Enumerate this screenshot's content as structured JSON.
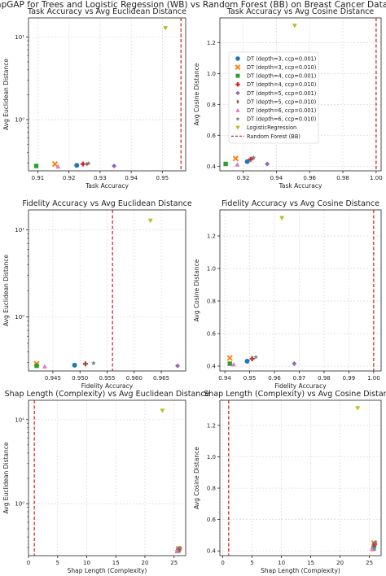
{
  "figure_title": "ShapGAP for Trees and Logistic Regession (WB) vs Random Forest (BB) on Breast Cancer Dataset",
  "legend": [
    {
      "label": "DT (depth=3, ccp=0.001)",
      "color": "#1f77b4",
      "marker": "circle"
    },
    {
      "label": "DT (depth=3, ccp=0.010)",
      "color": "#ff7f0e",
      "marker": "x"
    },
    {
      "label": "DT (depth=4, ccp=0.001)",
      "color": "#2ca02c",
      "marker": "square"
    },
    {
      "label": "DT (depth=4, ccp=0.010)",
      "color": "#d62728",
      "marker": "plus"
    },
    {
      "label": "DT (depth=5, ccp=0.001)",
      "color": "#9467bd",
      "marker": "diamond"
    },
    {
      "label": "DT (depth=5, ccp=0.010)",
      "color": "#8c564b",
      "marker": "thin-diamond"
    },
    {
      "label": "DT (depth=6, ccp=0.001)",
      "color": "#e377c2",
      "marker": "triangle-up"
    },
    {
      "label": "DT (depth=6, ccp=0.010)",
      "color": "#7f7f7f",
      "marker": "star"
    },
    {
      "label": "LogisticRegression",
      "color": "#bcbd22",
      "marker": "triangle-down"
    },
    {
      "label": "Random Forest (BB)",
      "color": "#d62728",
      "marker": "dashed-line"
    }
  ],
  "chart_data": [
    {
      "type": "scatter",
      "title": "Task Accuracy vs Avg Euclidean Distance",
      "xlabel": "Task Accuracy",
      "ylabel": "Avg Euclidean Distance",
      "xscale": "linear",
      "yscale": "log",
      "xlim": [
        0.907,
        0.9575
      ],
      "ylim": [
        0.24,
        17
      ],
      "xticks": [
        0.91,
        0.92,
        0.93,
        0.94,
        0.95
      ],
      "xtick_labels": [
        "0.91",
        "0.92",
        "0.93",
        "0.94",
        "0.95"
      ],
      "yticks": [
        1,
        10
      ],
      "ytick_labels": [
        "10⁰",
        "10¹"
      ],
      "grid": true,
      "reference_line": {
        "axis": "x",
        "value": 0.956,
        "label": "Random Forest (BB)"
      },
      "points": [
        {
          "series": 0,
          "x": 0.9225,
          "y": 0.28
        },
        {
          "series": 1,
          "x": 0.9155,
          "y": 0.29
        },
        {
          "series": 2,
          "x": 0.9095,
          "y": 0.275
        },
        {
          "series": 3,
          "x": 0.9245,
          "y": 0.29
        },
        {
          "series": 4,
          "x": 0.9345,
          "y": 0.275
        },
        {
          "series": 5,
          "x": 0.9258,
          "y": 0.29
        },
        {
          "series": 6,
          "x": 0.9165,
          "y": 0.27
        },
        {
          "series": 7,
          "x": 0.9263,
          "y": 0.295
        },
        {
          "series": 8,
          "x": 0.951,
          "y": 12.8
        }
      ]
    },
    {
      "type": "scatter",
      "title": "Task Accuracy vs Avg Cosine Distance",
      "xlabel": "Task Accuracy",
      "ylabel": "Avg Cosine Distance",
      "xscale": "linear",
      "yscale": "linear",
      "xlim": [
        0.906,
        1.003
      ],
      "ylim": [
        0.37,
        1.36
      ],
      "xticks": [
        0.92,
        0.94,
        0.96,
        0.98,
        1.0
      ],
      "xtick_labels": [
        "0.92",
        "0.94",
        "0.96",
        "0.98",
        "1.00"
      ],
      "yticks": [
        0.4,
        0.6,
        0.8,
        1.0,
        1.2
      ],
      "ytick_labels": [
        "0.4",
        "0.6",
        "0.8",
        "1.0",
        "1.2"
      ],
      "grid": true,
      "reference_line": {
        "axis": "x",
        "value": 1.0,
        "label": "Random Forest (BB)"
      },
      "legend_position": "center",
      "points": [
        {
          "series": 0,
          "x": 0.9225,
          "y": 0.43
        },
        {
          "series": 1,
          "x": 0.9155,
          "y": 0.45
        },
        {
          "series": 2,
          "x": 0.9095,
          "y": 0.415
        },
        {
          "series": 3,
          "x": 0.9245,
          "y": 0.445
        },
        {
          "series": 4,
          "x": 0.9345,
          "y": 0.415
        },
        {
          "series": 5,
          "x": 0.9258,
          "y": 0.45
        },
        {
          "series": 6,
          "x": 0.9165,
          "y": 0.41
        },
        {
          "series": 7,
          "x": 0.9263,
          "y": 0.455
        },
        {
          "series": 8,
          "x": 0.951,
          "y": 1.31
        }
      ]
    },
    {
      "type": "scatter",
      "title": "Fidelity Accuracy vs Avg Euclidean Distance",
      "xlabel": "Fidelity Accuracy",
      "ylabel": "Avg Euclidean Distance",
      "xscale": "linear",
      "yscale": "log",
      "xlim": [
        0.9405,
        0.9695
      ],
      "ylim": [
        0.24,
        17
      ],
      "xticks": [
        0.945,
        0.95,
        0.955,
        0.96,
        0.965
      ],
      "xtick_labels": [
        "0.945",
        "0.950",
        "0.955",
        "0.960",
        "0.965"
      ],
      "yticks": [
        1,
        10
      ],
      "ytick_labels": [
        "10⁰",
        "10¹"
      ],
      "grid": true,
      "reference_line": {
        "axis": "x",
        "value": 0.956,
        "label": "Random Forest (BB)"
      },
      "points": [
        {
          "series": 0,
          "x": 0.949,
          "y": 0.28
        },
        {
          "series": 1,
          "x": 0.942,
          "y": 0.29
        },
        {
          "series": 2,
          "x": 0.942,
          "y": 0.275
        },
        {
          "series": 3,
          "x": 0.951,
          "y": 0.29
        },
        {
          "series": 4,
          "x": 0.968,
          "y": 0.275
        },
        {
          "series": 5,
          "x": 0.951,
          "y": 0.29
        },
        {
          "series": 6,
          "x": 0.9435,
          "y": 0.27
        },
        {
          "series": 7,
          "x": 0.9525,
          "y": 0.295
        },
        {
          "series": 8,
          "x": 0.963,
          "y": 12.8
        }
      ]
    },
    {
      "type": "scatter",
      "title": "Fidelity Accuracy vs Avg Cosine Distance",
      "xlabel": "Fidelity Accuracy",
      "ylabel": "Avg Cosine Distance",
      "xscale": "linear",
      "yscale": "linear",
      "xlim": [
        0.938,
        1.003
      ],
      "ylim": [
        0.37,
        1.36
      ],
      "xticks": [
        0.94,
        0.95,
        0.96,
        0.97,
        0.98,
        0.99,
        1.0
      ],
      "xtick_labels": [
        "0.94",
        "0.95",
        "0.96",
        "0.97",
        "0.98",
        "0.99",
        "1.00"
      ],
      "yticks": [
        0.4,
        0.6,
        0.8,
        1.0,
        1.2
      ],
      "ytick_labels": [
        "0.4",
        "0.6",
        "0.8",
        "1.0",
        "1.2"
      ],
      "grid": true,
      "reference_line": {
        "axis": "x",
        "value": 1.0,
        "label": "Random Forest (BB)"
      },
      "points": [
        {
          "series": 0,
          "x": 0.949,
          "y": 0.43
        },
        {
          "series": 1,
          "x": 0.942,
          "y": 0.45
        },
        {
          "series": 2,
          "x": 0.942,
          "y": 0.415
        },
        {
          "series": 3,
          "x": 0.951,
          "y": 0.445
        },
        {
          "series": 4,
          "x": 0.968,
          "y": 0.415
        },
        {
          "series": 5,
          "x": 0.951,
          "y": 0.45
        },
        {
          "series": 6,
          "x": 0.9435,
          "y": 0.41
        },
        {
          "series": 7,
          "x": 0.9525,
          "y": 0.455
        },
        {
          "series": 8,
          "x": 0.963,
          "y": 1.31
        }
      ]
    },
    {
      "type": "scatter",
      "title": "Shap Length (Complexity) vs Avg Euclidean Distance",
      "xlabel": "Shap Length (Complexity)",
      "ylabel": "Avg Euclidean Distance",
      "xscale": "linear",
      "yscale": "log",
      "xlim": [
        0,
        27
      ],
      "ylim": [
        0.24,
        17
      ],
      "xticks": [
        0,
        5,
        10,
        15,
        20,
        25
      ],
      "xtick_labels": [
        "0",
        "5",
        "10",
        "15",
        "20",
        "25"
      ],
      "yticks": [
        1,
        10
      ],
      "ytick_labels": [
        "10⁰",
        "10¹"
      ],
      "grid": true,
      "reference_line": {
        "axis": "x",
        "value": 1,
        "label": "Random Forest (BB)"
      },
      "points": [
        {
          "series": 0,
          "x": 25.8,
          "y": 0.28
        },
        {
          "series": 1,
          "x": 25.8,
          "y": 0.29
        },
        {
          "series": 2,
          "x": 25.7,
          "y": 0.275
        },
        {
          "series": 3,
          "x": 25.9,
          "y": 0.29
        },
        {
          "series": 4,
          "x": 25.6,
          "y": 0.275
        },
        {
          "series": 5,
          "x": 25.9,
          "y": 0.29
        },
        {
          "series": 6,
          "x": 25.5,
          "y": 0.27
        },
        {
          "series": 7,
          "x": 26.0,
          "y": 0.295
        },
        {
          "series": 8,
          "x": 23.0,
          "y": 12.8
        }
      ]
    },
    {
      "type": "scatter",
      "title": "Shap Length (Complexity) vs Avg Cosine Distance",
      "xlabel": "Shap Length (Complexity)",
      "ylabel": "Avg Cosine Distance",
      "xscale": "linear",
      "yscale": "linear",
      "xlim": [
        -0.5,
        27
      ],
      "ylim": [
        0.37,
        1.36
      ],
      "xticks": [
        0,
        5,
        10,
        15,
        20,
        25
      ],
      "xtick_labels": [
        "0",
        "5",
        "10",
        "15",
        "20",
        "25"
      ],
      "yticks": [
        0.4,
        0.6,
        0.8,
        1.0,
        1.2
      ],
      "ytick_labels": [
        "0.4",
        "0.6",
        "0.8",
        "1.0",
        "1.2"
      ],
      "grid": true,
      "reference_line": {
        "axis": "x",
        "value": 1,
        "label": "Random Forest (BB)"
      },
      "points": [
        {
          "series": 0,
          "x": 25.8,
          "y": 0.43
        },
        {
          "series": 1,
          "x": 25.8,
          "y": 0.45
        },
        {
          "series": 2,
          "x": 25.7,
          "y": 0.415
        },
        {
          "series": 3,
          "x": 25.9,
          "y": 0.445
        },
        {
          "series": 4,
          "x": 25.6,
          "y": 0.415
        },
        {
          "series": 5,
          "x": 25.9,
          "y": 0.45
        },
        {
          "series": 6,
          "x": 25.5,
          "y": 0.41
        },
        {
          "series": 7,
          "x": 26.0,
          "y": 0.455
        },
        {
          "series": 8,
          "x": 23.0,
          "y": 1.31
        }
      ]
    }
  ]
}
